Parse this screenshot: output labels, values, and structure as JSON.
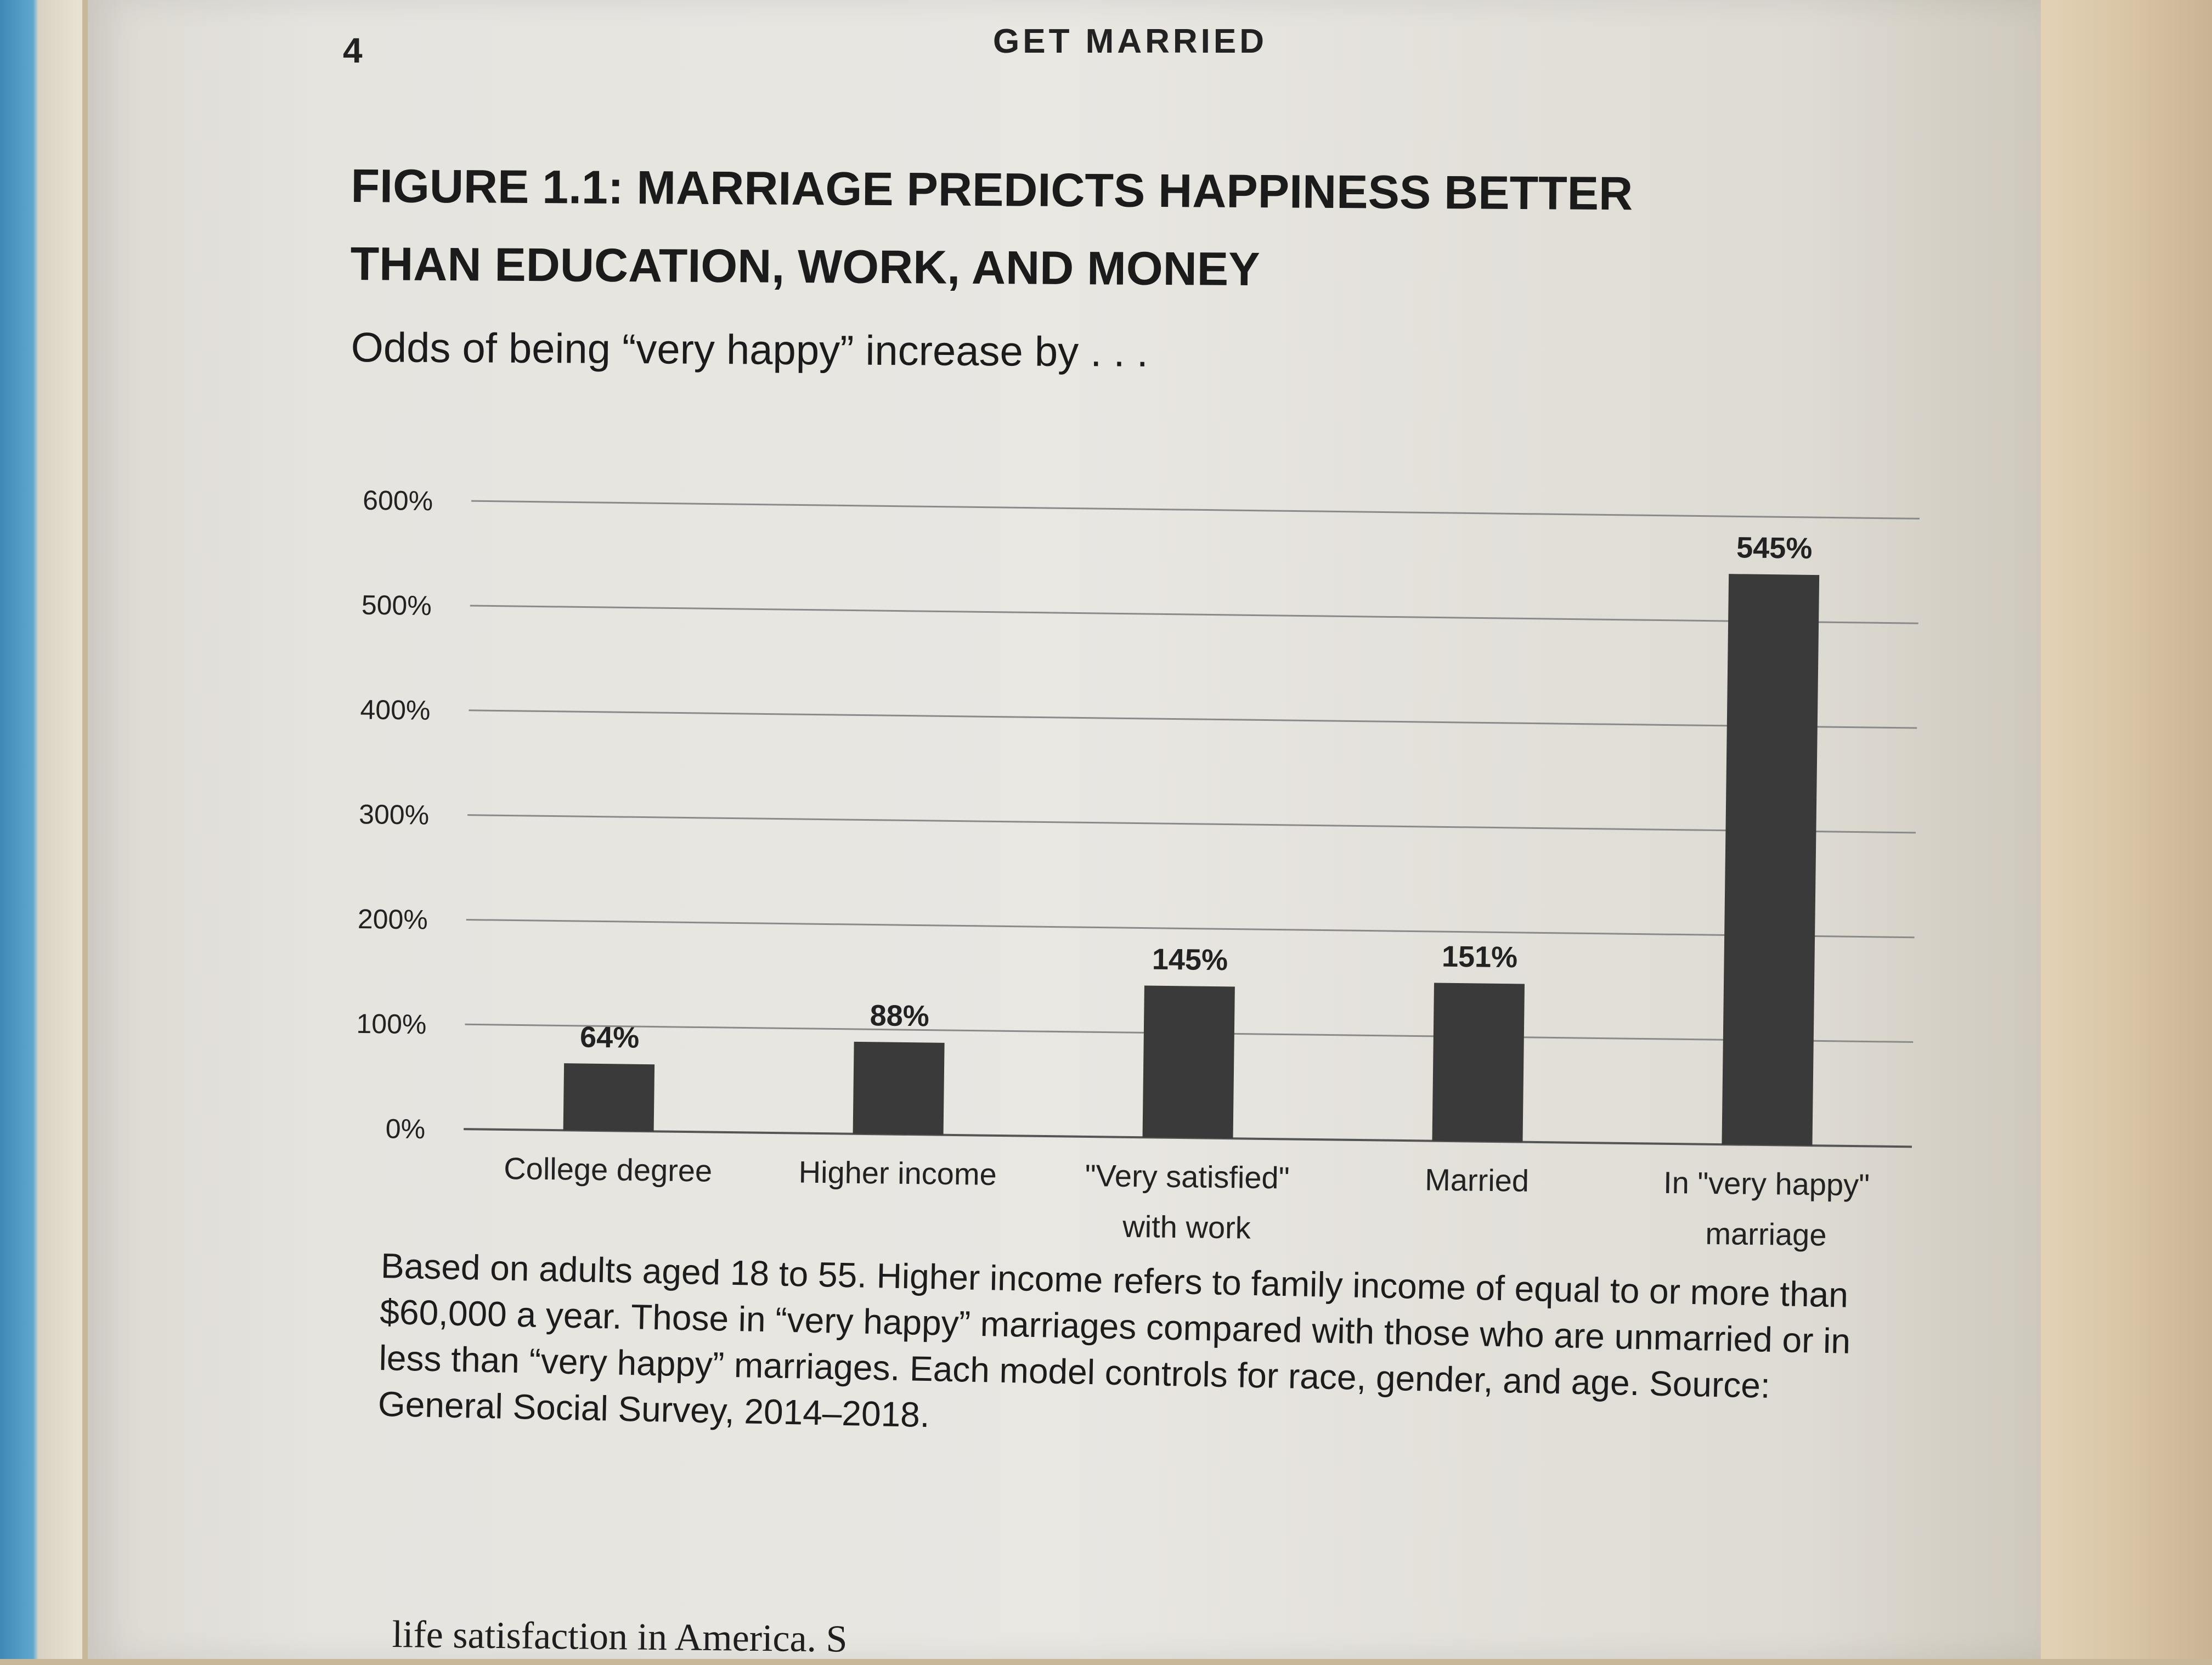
{
  "page": {
    "number": "4",
    "running_head": "GET MARRIED"
  },
  "figure": {
    "title_line1": "FIGURE 1.1: MARRIAGE PREDICTS HAPPINESS BETTER",
    "title_line2": "THAN EDUCATION, WORK, AND MONEY",
    "subtitle": "Odds of being “very happy” increase by . . .",
    "caption": "Based on adults aged 18 to 55. Higher income refers to family income of equal to or more than $60,000 a year. Those in “very happy” marriages compared with those who are unmarried or in less than “very happy” marriages. Each model controls for race, gender, and age. Source: General Social Survey, 2014–2018."
  },
  "chart_data": {
    "type": "bar",
    "categories": [
      [
        "College degree"
      ],
      [
        "Higher income"
      ],
      [
        "\"Very satisfied\"",
        "with work"
      ],
      [
        "Married"
      ],
      [
        "In \"very happy\"",
        "marriage"
      ]
    ],
    "values": [
      64,
      88,
      145,
      151,
      545
    ],
    "value_labels": [
      "64%",
      "88%",
      "145%",
      "151%",
      "545%"
    ],
    "y_ticks": [
      0,
      100,
      200,
      300,
      400,
      500,
      600
    ],
    "y_tick_labels": [
      "0%",
      "100%",
      "200%",
      "300%",
      "400%",
      "500%",
      "600%"
    ],
    "ylim": [
      0,
      600
    ],
    "grid": true,
    "bar_color": "#3a3a3a",
    "grid_color": "#8a8a8a"
  },
  "body_text_fragment": "life satisfaction in America. S"
}
